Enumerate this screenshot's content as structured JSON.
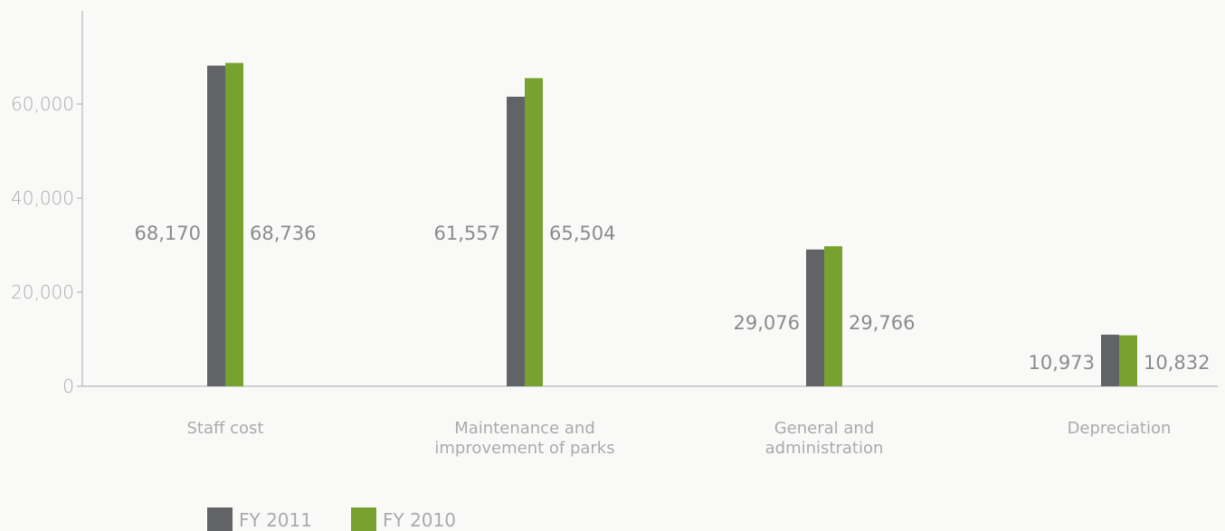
{
  "chart_data": {
    "type": "bar",
    "categories": [
      [
        "Staff cost"
      ],
      [
        "Maintenance and",
        "improvement of parks"
      ],
      [
        "General and",
        "administration"
      ],
      [
        "Depreciation"
      ]
    ],
    "series": [
      {
        "name": "FY 2011",
        "color": "#626366",
        "values": [
          68170,
          61557,
          29076,
          10973
        ],
        "labels": [
          "68,170",
          "61,557",
          "29,076",
          "10,973"
        ]
      },
      {
        "name": "FY 2010",
        "color": "#78a22f",
        "values": [
          68736,
          65504,
          29766,
          10832
        ],
        "labels": [
          "68,736",
          "65,504",
          "29,766",
          "10,832"
        ]
      }
    ],
    "yticks": [
      0,
      20000,
      40000,
      60000
    ],
    "ytick_labels": [
      "0",
      "20,000",
      "40,000",
      "60,000"
    ],
    "ylim": [
      0,
      80000
    ],
    "grid": false,
    "legend_position": "bottom-left"
  }
}
